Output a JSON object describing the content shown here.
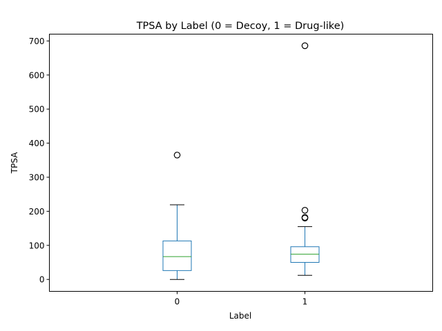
{
  "chart_data": {
    "type": "box",
    "title": "TPSA by Label (0 = Decoy, 1 = Drug-like)",
    "xlabel": "Label",
    "ylabel": "TPSA",
    "categories": [
      "0",
      "1"
    ],
    "ylim": [
      -35,
      720
    ],
    "yticks": [
      0,
      100,
      200,
      300,
      400,
      500,
      600,
      700
    ],
    "grid": false,
    "boxes": [
      {
        "category": "0",
        "whisker_low": 0,
        "q1": 26,
        "median": 67,
        "q3": 113,
        "whisker_high": 219,
        "outliers": [
          365
        ]
      },
      {
        "category": "1",
        "whisker_low": 12,
        "q1": 50,
        "median": 74,
        "q3": 96,
        "whisker_high": 155,
        "outliers": [
          180,
          182,
          203,
          686
        ]
      }
    ],
    "colors": {
      "box": "#1f77b4",
      "median": "#2ca02c",
      "whisker_cap": "#000000",
      "outlier": "#000000"
    }
  }
}
